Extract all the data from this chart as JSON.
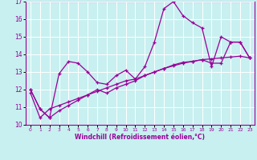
{
  "xlabel": "Windchill (Refroidissement éolien,°C)",
  "background_color": "#c8f0f0",
  "grid_color": "#ffffff",
  "line_color": "#990099",
  "xlim": [
    -0.5,
    23.5
  ],
  "ylim": [
    10,
    17
  ],
  "xticks": [
    0,
    1,
    2,
    3,
    4,
    5,
    6,
    7,
    8,
    9,
    10,
    11,
    12,
    13,
    14,
    15,
    16,
    17,
    18,
    19,
    20,
    21,
    22,
    23
  ],
  "yticks": [
    10,
    11,
    12,
    13,
    14,
    15,
    16,
    17
  ],
  "series1_x": [
    0,
    1,
    2,
    3,
    4,
    5,
    6,
    7,
    8,
    9,
    10,
    11,
    12,
    13,
    14,
    15,
    16,
    17,
    18,
    19,
    20,
    21,
    22,
    23
  ],
  "series1_y": [
    12.0,
    10.9,
    10.4,
    12.9,
    13.6,
    13.5,
    13.0,
    12.4,
    12.3,
    12.8,
    13.1,
    12.6,
    13.3,
    14.7,
    16.6,
    17.0,
    16.2,
    15.8,
    15.5,
    13.3,
    15.0,
    14.7,
    14.7,
    13.8
  ],
  "series2_x": [
    0,
    1,
    2,
    3,
    4,
    5,
    6,
    7,
    8,
    9,
    10,
    11,
    12,
    13,
    14,
    15,
    16,
    17,
    18,
    19,
    20,
    21,
    22,
    23
  ],
  "series2_y": [
    11.8,
    10.4,
    10.9,
    11.1,
    11.3,
    11.5,
    11.7,
    11.9,
    12.1,
    12.3,
    12.5,
    12.6,
    12.8,
    13.0,
    13.2,
    13.35,
    13.5,
    13.6,
    13.7,
    13.75,
    13.8,
    13.85,
    13.9,
    13.8
  ],
  "series3_x": [
    0,
    1,
    2,
    3,
    4,
    5,
    6,
    7,
    8,
    9,
    10,
    11,
    12,
    13,
    14,
    15,
    16,
    17,
    18,
    19,
    20,
    21,
    22,
    23
  ],
  "series3_y": [
    12.0,
    10.9,
    10.4,
    10.8,
    11.1,
    11.4,
    11.7,
    12.0,
    11.8,
    12.1,
    12.3,
    12.5,
    12.8,
    13.0,
    13.2,
    13.4,
    13.55,
    13.6,
    13.7,
    13.5,
    13.5,
    14.7,
    14.7,
    13.8
  ]
}
